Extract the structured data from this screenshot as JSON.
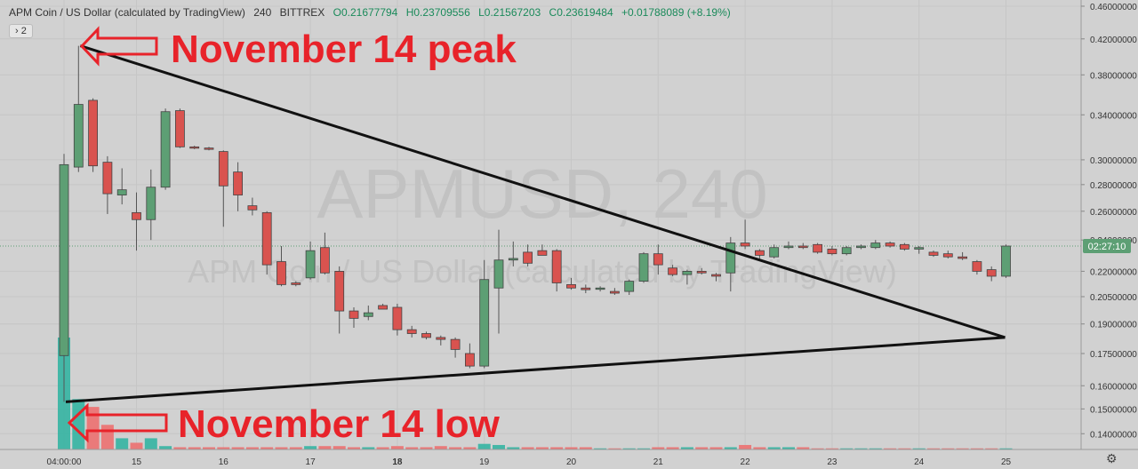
{
  "header": {
    "symbol": "APM Coin / US Dollar (calculated by TradingView)",
    "interval": "240",
    "exchange": "BITTREX",
    "open": "O0.21677794",
    "high": "H0.23709556",
    "low": "L0.21567203",
    "close": "C0.23619484",
    "change": "+0.01788089 (+8.19%)"
  },
  "indicator_badge": "› 2",
  "watermark": {
    "line1": "APMUSD, 240",
    "line2": "APM Coin / US Dollar (calculated by TradingView)"
  },
  "annotations": {
    "peak": "November 14 peak",
    "low": "November 14 low"
  },
  "price_label": "02:27:10",
  "colors": {
    "up": "#5d9f74",
    "down": "#d9534f",
    "annotation": "#e8232a",
    "background": "#d1d1d1",
    "price_label_bg": "#5d9f74",
    "volume_up": "#2bb3a0",
    "volume_down": "#ef6b6b"
  },
  "icons": {
    "settings": "gear-icon",
    "annotation_arrow": "arrow-left-icon"
  },
  "chart_data": {
    "type": "candlestick",
    "title": "APMUSD, 240",
    "y_scale": "log",
    "ylim": [
      0.134,
      0.468
    ],
    "y_ticks": [
      0.46,
      0.42,
      0.38,
      0.34,
      0.3,
      0.28,
      0.26,
      0.24,
      0.22,
      0.205,
      0.19,
      0.175,
      0.16,
      0.15,
      0.14
    ],
    "y_tick_labels": [
      "0.46000000",
      "0.42000000",
      "0.38000000",
      "0.34000000",
      "0.30000000",
      "0.28000000",
      "0.26000000",
      "0.24000000",
      "0.22000000",
      "0.20500000",
      "0.19000000",
      "0.17500000",
      "0.16000000",
      "0.15000000",
      "0.14000000"
    ],
    "x_ticks": [
      {
        "label": "04:00:00",
        "index": 0
      },
      {
        "label": "15",
        "index": 5
      },
      {
        "label": "16",
        "index": 11
      },
      {
        "label": "17",
        "index": 17
      },
      {
        "label": "18",
        "index": 23
      },
      {
        "label": "19",
        "index": 29
      },
      {
        "label": "20",
        "index": 35
      },
      {
        "label": "21",
        "index": 41
      },
      {
        "label": "22",
        "index": 47
      },
      {
        "label": "23",
        "index": 53
      },
      {
        "label": "24",
        "index": 59
      },
      {
        "label": "25",
        "index": 65
      }
    ],
    "candles": [
      {
        "o": 0.174,
        "h": 0.305,
        "l": 0.153,
        "c": 0.296
      },
      {
        "o": 0.294,
        "h": 0.412,
        "l": 0.29,
        "c": 0.35
      },
      {
        "o": 0.354,
        "h": 0.356,
        "l": 0.29,
        "c": 0.295
      },
      {
        "o": 0.298,
        "h": 0.303,
        "l": 0.258,
        "c": 0.273
      },
      {
        "o": 0.272,
        "h": 0.293,
        "l": 0.265,
        "c": 0.276
      },
      {
        "o": 0.259,
        "h": 0.274,
        "l": 0.233,
        "c": 0.254
      },
      {
        "o": 0.254,
        "h": 0.292,
        "l": 0.24,
        "c": 0.278
      },
      {
        "o": 0.278,
        "h": 0.346,
        "l": 0.276,
        "c": 0.343
      },
      {
        "o": 0.344,
        "h": 0.346,
        "l": 0.31,
        "c": 0.311
      },
      {
        "o": 0.311,
        "h": 0.312,
        "l": 0.309,
        "c": 0.31
      },
      {
        "o": 0.31,
        "h": 0.311,
        "l": 0.308,
        "c": 0.309
      },
      {
        "o": 0.307,
        "h": 0.308,
        "l": 0.249,
        "c": 0.279
      },
      {
        "o": 0.29,
        "h": 0.298,
        "l": 0.26,
        "c": 0.272
      },
      {
        "o": 0.264,
        "h": 0.27,
        "l": 0.257,
        "c": 0.261
      },
      {
        "o": 0.259,
        "h": 0.26,
        "l": 0.218,
        "c": 0.224
      },
      {
        "o": 0.226,
        "h": 0.236,
        "l": 0.211,
        "c": 0.212
      },
      {
        "o": 0.213,
        "h": 0.214,
        "l": 0.211,
        "c": 0.212
      },
      {
        "o": 0.216,
        "h": 0.239,
        "l": 0.215,
        "c": 0.233
      },
      {
        "o": 0.235,
        "h": 0.245,
        "l": 0.218,
        "c": 0.219
      },
      {
        "o": 0.22,
        "h": 0.223,
        "l": 0.185,
        "c": 0.197
      },
      {
        "o": 0.197,
        "h": 0.199,
        "l": 0.188,
        "c": 0.193
      },
      {
        "o": 0.194,
        "h": 0.2,
        "l": 0.192,
        "c": 0.196
      },
      {
        "o": 0.2,
        "h": 0.201,
        "l": 0.199,
        "c": 0.198
      },
      {
        "o": 0.199,
        "h": 0.201,
        "l": 0.184,
        "c": 0.187
      },
      {
        "o": 0.187,
        "h": 0.189,
        "l": 0.183,
        "c": 0.185
      },
      {
        "o": 0.185,
        "h": 0.186,
        "l": 0.182,
        "c": 0.183
      },
      {
        "o": 0.183,
        "h": 0.184,
        "l": 0.179,
        "c": 0.182
      },
      {
        "o": 0.182,
        "h": 0.183,
        "l": 0.173,
        "c": 0.177
      },
      {
        "o": 0.175,
        "h": 0.18,
        "l": 0.168,
        "c": 0.169
      },
      {
        "o": 0.169,
        "h": 0.227,
        "l": 0.168,
        "c": 0.215
      },
      {
        "o": 0.21,
        "h": 0.247,
        "l": 0.185,
        "c": 0.227
      },
      {
        "o": 0.227,
        "h": 0.239,
        "l": 0.223,
        "c": 0.228
      },
      {
        "o": 0.232,
        "h": 0.237,
        "l": 0.223,
        "c": 0.225
      },
      {
        "o": 0.233,
        "h": 0.237,
        "l": 0.231,
        "c": 0.23
      },
      {
        "o": 0.233,
        "h": 0.234,
        "l": 0.208,
        "c": 0.213
      },
      {
        "o": 0.212,
        "h": 0.216,
        "l": 0.209,
        "c": 0.21
      },
      {
        "o": 0.21,
        "h": 0.212,
        "l": 0.207,
        "c": 0.209
      },
      {
        "o": 0.21,
        "h": 0.211,
        "l": 0.208,
        "c": 0.21
      },
      {
        "o": 0.208,
        "h": 0.21,
        "l": 0.206,
        "c": 0.207
      },
      {
        "o": 0.208,
        "h": 0.215,
        "l": 0.206,
        "c": 0.214
      },
      {
        "o": 0.214,
        "h": 0.232,
        "l": 0.213,
        "c": 0.231
      },
      {
        "o": 0.231,
        "h": 0.237,
        "l": 0.218,
        "c": 0.224
      },
      {
        "o": 0.222,
        "h": 0.224,
        "l": 0.217,
        "c": 0.218
      },
      {
        "o": 0.218,
        "h": 0.221,
        "l": 0.212,
        "c": 0.22
      },
      {
        "o": 0.22,
        "h": 0.222,
        "l": 0.218,
        "c": 0.219
      },
      {
        "o": 0.218,
        "h": 0.219,
        "l": 0.214,
        "c": 0.217
      },
      {
        "o": 0.219,
        "h": 0.242,
        "l": 0.208,
        "c": 0.238
      },
      {
        "o": 0.238,
        "h": 0.254,
        "l": 0.234,
        "c": 0.236
      },
      {
        "o": 0.233,
        "h": 0.234,
        "l": 0.227,
        "c": 0.23
      },
      {
        "o": 0.229,
        "h": 0.237,
        "l": 0.228,
        "c": 0.235
      },
      {
        "o": 0.235,
        "h": 0.239,
        "l": 0.234,
        "c": 0.236
      },
      {
        "o": 0.236,
        "h": 0.238,
        "l": 0.234,
        "c": 0.235
      },
      {
        "o": 0.237,
        "h": 0.238,
        "l": 0.231,
        "c": 0.232
      },
      {
        "o": 0.234,
        "h": 0.236,
        "l": 0.23,
        "c": 0.231
      },
      {
        "o": 0.231,
        "h": 0.236,
        "l": 0.23,
        "c": 0.235
      },
      {
        "o": 0.235,
        "h": 0.237,
        "l": 0.234,
        "c": 0.236
      },
      {
        "o": 0.235,
        "h": 0.24,
        "l": 0.234,
        "c": 0.238
      },
      {
        "o": 0.238,
        "h": 0.239,
        "l": 0.235,
        "c": 0.236
      },
      {
        "o": 0.237,
        "h": 0.238,
        "l": 0.233,
        "c": 0.234
      },
      {
        "o": 0.234,
        "h": 0.236,
        "l": 0.231,
        "c": 0.235
      },
      {
        "o": 0.232,
        "h": 0.233,
        "l": 0.229,
        "c": 0.23
      },
      {
        "o": 0.231,
        "h": 0.233,
        "l": 0.228,
        "c": 0.229
      },
      {
        "o": 0.229,
        "h": 0.232,
        "l": 0.227,
        "c": 0.228
      },
      {
        "o": 0.226,
        "h": 0.227,
        "l": 0.218,
        "c": 0.22
      },
      {
        "o": 0.221,
        "h": 0.223,
        "l": 0.214,
        "c": 0.217
      },
      {
        "o": 0.217,
        "h": 0.237,
        "l": 0.216,
        "c": 0.236
      }
    ],
    "volume_scale_max": 1,
    "volumes": [
      1.0,
      0.45,
      0.38,
      0.22,
      0.1,
      0.06,
      0.1,
      0.03,
      0.02,
      0.02,
      0.02,
      0.02,
      0.02,
      0.02,
      0.02,
      0.02,
      0.02,
      0.03,
      0.03,
      0.03,
      0.02,
      0.02,
      0.02,
      0.03,
      0.02,
      0.02,
      0.03,
      0.02,
      0.02,
      0.05,
      0.04,
      0.02,
      0.02,
      0.02,
      0.02,
      0.02,
      0.02,
      0.01,
      0.01,
      0.01,
      0.01,
      0.02,
      0.02,
      0.02,
      0.02,
      0.02,
      0.02,
      0.04,
      0.02,
      0.02,
      0.02,
      0.02,
      0.01,
      0.01,
      0.01,
      0.01,
      0.01,
      0.01,
      0.01,
      0.01,
      0.01,
      0.01,
      0.01,
      0.01,
      0.01,
      0.01
    ],
    "trendlines": [
      {
        "from": {
          "index": 1,
          "price": 0.412
        },
        "to": {
          "index": 65,
          "price": 0.183
        }
      },
      {
        "from": {
          "index": 0,
          "price": 0.153
        },
        "to": {
          "index": 65,
          "price": 0.183
        }
      }
    ],
    "current_price": 0.236
  }
}
